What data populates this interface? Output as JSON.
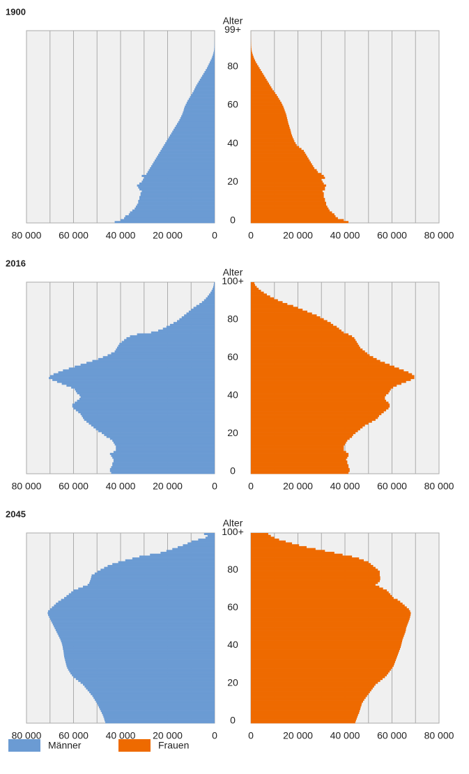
{
  "chart_data": [
    {
      "type": "pyramid",
      "title": "1900",
      "ylabel": "Alter",
      "xlim": [
        0,
        80000
      ],
      "xticks": [
        0,
        {
          "value": 20000,
          "label": "20 000"
        },
        {
          "value": 40000,
          "label": "40 000"
        },
        {
          "value": 60000,
          "label": "60 000"
        },
        {
          "value": 80000,
          "label": "80 000"
        }
      ],
      "xminor_ticks": [
        10000,
        30000,
        50000,
        70000
      ],
      "ylim": [
        0,
        100
      ],
      "yticks": [
        0,
        20,
        40,
        60,
        80,
        {
          "value": 99,
          "label": "99+"
        }
      ],
      "grid": true,
      "series": [
        {
          "name": "Männer",
          "color": "#6b9bd3",
          "values": [
            42500,
            40000,
            38500,
            38000,
            36500,
            36000,
            35000,
            34000,
            33500,
            33000,
            32500,
            32500,
            32000,
            32000,
            31500,
            31500,
            31000,
            32000,
            32500,
            33000,
            32000,
            31000,
            30500,
            30000,
            31000,
            29000,
            28500,
            28000,
            27500,
            27000,
            26500,
            26000,
            25500,
            25000,
            24500,
            24000,
            23500,
            23000,
            22500,
            22000,
            21500,
            21000,
            20500,
            20000,
            19500,
            19000,
            18500,
            18000,
            17500,
            17000,
            16500,
            16000,
            15500,
            15000,
            14600,
            14200,
            13800,
            13500,
            13200,
            13000,
            12700,
            12300,
            11900,
            11500,
            11000,
            10500,
            10000,
            9500,
            9000,
            8600,
            8200,
            7800,
            7300,
            6800,
            6300,
            5800,
            5300,
            4800,
            4300,
            3800,
            3300,
            2900,
            2500,
            2100,
            1700,
            1300,
            1000,
            700,
            500,
            300,
            200,
            150,
            100,
            70,
            50,
            30,
            20,
            10,
            10,
            10
          ]
        },
        {
          "name": "Frauen",
          "color": "#ee6a00",
          "values": [
            41500,
            39500,
            37000,
            36000,
            35500,
            34500,
            33500,
            33000,
            32500,
            32000,
            32000,
            31500,
            31500,
            31000,
            31000,
            31000,
            30500,
            31500,
            31500,
            32000,
            31000,
            30500,
            30000,
            31500,
            31000,
            30000,
            28500,
            28000,
            27000,
            26500,
            26000,
            25500,
            25000,
            24500,
            24000,
            23500,
            23000,
            22500,
            21500,
            20500,
            19500,
            19000,
            18500,
            18200,
            17800,
            17500,
            17200,
            17000,
            16800,
            16500,
            16300,
            16000,
            15800,
            15600,
            15400,
            15200,
            15000,
            14700,
            14400,
            14100,
            13800,
            13400,
            13000,
            12500,
            12000,
            11500,
            11000,
            10400,
            9800,
            9200,
            8700,
            8200,
            7700,
            7200,
            6700,
            6200,
            5700,
            5200,
            4700,
            4200,
            3700,
            3200,
            2700,
            2200,
            1800,
            1400,
            1100,
            800,
            550,
            350,
            250,
            170,
            110,
            80,
            50,
            30,
            20,
            15,
            10,
            10
          ]
        }
      ]
    },
    {
      "type": "pyramid",
      "title": "2016",
      "ylabel": "Alter",
      "xlim": [
        0,
        80000
      ],
      "xticks": [
        0,
        {
          "value": 20000,
          "label": "20 000"
        },
        {
          "value": 40000,
          "label": "40 000"
        },
        {
          "value": 60000,
          "label": "60 000"
        },
        {
          "value": 80000,
          "label": "80 000"
        }
      ],
      "xminor_ticks": [
        10000,
        30000,
        50000,
        70000
      ],
      "ylim": [
        0,
        101
      ],
      "yticks": [
        0,
        20,
        40,
        60,
        80,
        {
          "value": 100,
          "label": "100+"
        }
      ],
      "grid": true,
      "series": [
        {
          "values": [
            44000,
            44500,
            44500,
            44000,
            43500,
            43500,
            43000,
            43000,
            43500,
            44000,
            44500,
            43000,
            42000,
            42000,
            42000,
            42500,
            43000,
            43500,
            44500,
            46000,
            47000,
            48000,
            49500,
            50500,
            51500,
            52500,
            53500,
            54500,
            55500,
            56000,
            56500,
            57000,
            58000,
            59000,
            60000,
            60500,
            60500,
            59500,
            58500,
            57500,
            57000,
            57500,
            58500,
            59000,
            59500,
            61000,
            63000,
            65000,
            67000,
            69000,
            70500,
            70000,
            68500,
            66500,
            64500,
            62000,
            59500,
            57000,
            54500,
            52000,
            49500,
            47500,
            45500,
            44000,
            42500,
            42000,
            41500,
            41000,
            40500,
            39500,
            38500,
            37500,
            36000,
            33000,
            27000,
            24000,
            22000,
            20500,
            19000,
            17500,
            16000,
            15000,
            14000,
            13000,
            12000,
            11000,
            10000,
            9000,
            7800,
            6500,
            5400,
            4500,
            3700,
            3000,
            2400,
            1800,
            1300,
            900,
            600,
            400,
            300
          ]
        },
        {
          "values": [
            41500,
            42000,
            42000,
            41500,
            41500,
            41000,
            41000,
            40500,
            41000,
            41500,
            41500,
            40500,
            39500,
            39500,
            39500,
            40000,
            40500,
            41000,
            42000,
            43000,
            43500,
            44500,
            45500,
            46500,
            47500,
            48500,
            50000,
            51500,
            53000,
            54000,
            54500,
            55500,
            56500,
            57500,
            58500,
            59000,
            59000,
            58500,
            57500,
            57000,
            57000,
            57500,
            58500,
            59000,
            59500,
            60500,
            62000,
            64000,
            66000,
            68000,
            69500,
            69500,
            68500,
            67000,
            65000,
            63000,
            61000,
            59000,
            57000,
            55000,
            53500,
            52000,
            50500,
            49500,
            48500,
            47500,
            46500,
            46000,
            45500,
            45000,
            44500,
            44000,
            43000,
            41500,
            39500,
            38500,
            37500,
            36500,
            35000,
            34000,
            32500,
            31000,
            29500,
            28000,
            26000,
            24000,
            22000,
            20000,
            18000,
            15500,
            13500,
            11500,
            9800,
            8200,
            6800,
            5500,
            4300,
            3300,
            2500,
            1800,
            1500
          ]
        }
      ]
    },
    {
      "type": "pyramid",
      "title": "2045",
      "ylabel": "Alter",
      "xlim": [
        0,
        80000
      ],
      "xticks": [
        0,
        {
          "value": 20000,
          "label": "20 000"
        },
        {
          "value": 40000,
          "label": "40 000"
        },
        {
          "value": 60000,
          "label": "60 000"
        },
        {
          "value": 80000,
          "label": "80 000"
        }
      ],
      "xminor_ticks": [
        10000,
        30000,
        50000,
        70000
      ],
      "ylim": [
        0,
        101
      ],
      "yticks": [
        0,
        20,
        40,
        60,
        80,
        {
          "value": 100,
          "label": "100+"
        }
      ],
      "grid": true,
      "series": [
        {
          "values": [
            46500,
            46800,
            47000,
            47300,
            47600,
            48000,
            48400,
            48800,
            49200,
            49600,
            50000,
            50500,
            51000,
            51500,
            52000,
            52700,
            53300,
            54000,
            54700,
            55300,
            56000,
            57000,
            58000,
            59000,
            60000,
            60700,
            61300,
            61800,
            62300,
            62700,
            63000,
            63200,
            63400,
            63600,
            63800,
            64000,
            64100,
            64200,
            64300,
            64500,
            64600,
            64800,
            65000,
            65300,
            65600,
            66000,
            66400,
            66800,
            67200,
            67600,
            68000,
            68400,
            68800,
            69200,
            69600,
            70000,
            70400,
            70800,
            71000,
            70800,
            70000,
            69200,
            68300,
            67500,
            66500,
            65300,
            64000,
            63000,
            62000,
            61000,
            60000,
            58000,
            56000,
            54000,
            53300,
            53000,
            52700,
            52500,
            52300,
            51000,
            49800,
            48500,
            47000,
            45500,
            43500,
            41000,
            38000,
            35000,
            32000,
            27500,
            23000,
            20500,
            18000,
            15700,
            13500,
            11500,
            9800,
            7000,
            3900,
            3000,
            4500
          ]
        },
        {
          "values": [
            44400,
            44700,
            45000,
            45300,
            45600,
            46000,
            46200,
            46500,
            46700,
            47000,
            47200,
            47700,
            48200,
            48800,
            49400,
            50000,
            50600,
            51200,
            51800,
            52400,
            53000,
            54000,
            55000,
            56000,
            57000,
            57800,
            58400,
            59000,
            59600,
            60200,
            60700,
            61000,
            61300,
            61600,
            61900,
            62200,
            62500,
            62800,
            63100,
            63400,
            63700,
            63900,
            64100,
            64300,
            64500,
            64800,
            65100,
            65400,
            65700,
            65900,
            66000,
            66300,
            66600,
            66900,
            67200,
            67500,
            67700,
            67900,
            68000,
            67700,
            67200,
            66300,
            65400,
            64500,
            63500,
            62400,
            60700,
            60000,
            59300,
            58600,
            57800,
            56200,
            54600,
            53000,
            54000,
            54800,
            55000,
            55000,
            54800,
            54800,
            54800,
            54000,
            53000,
            52000,
            51000,
            50000,
            48000,
            46000,
            43000,
            39000,
            35500,
            31500,
            27500,
            23700,
            20500,
            17500,
            14800,
            12000,
            10000,
            8500,
            7400
          ]
        }
      ]
    }
  ]
}
